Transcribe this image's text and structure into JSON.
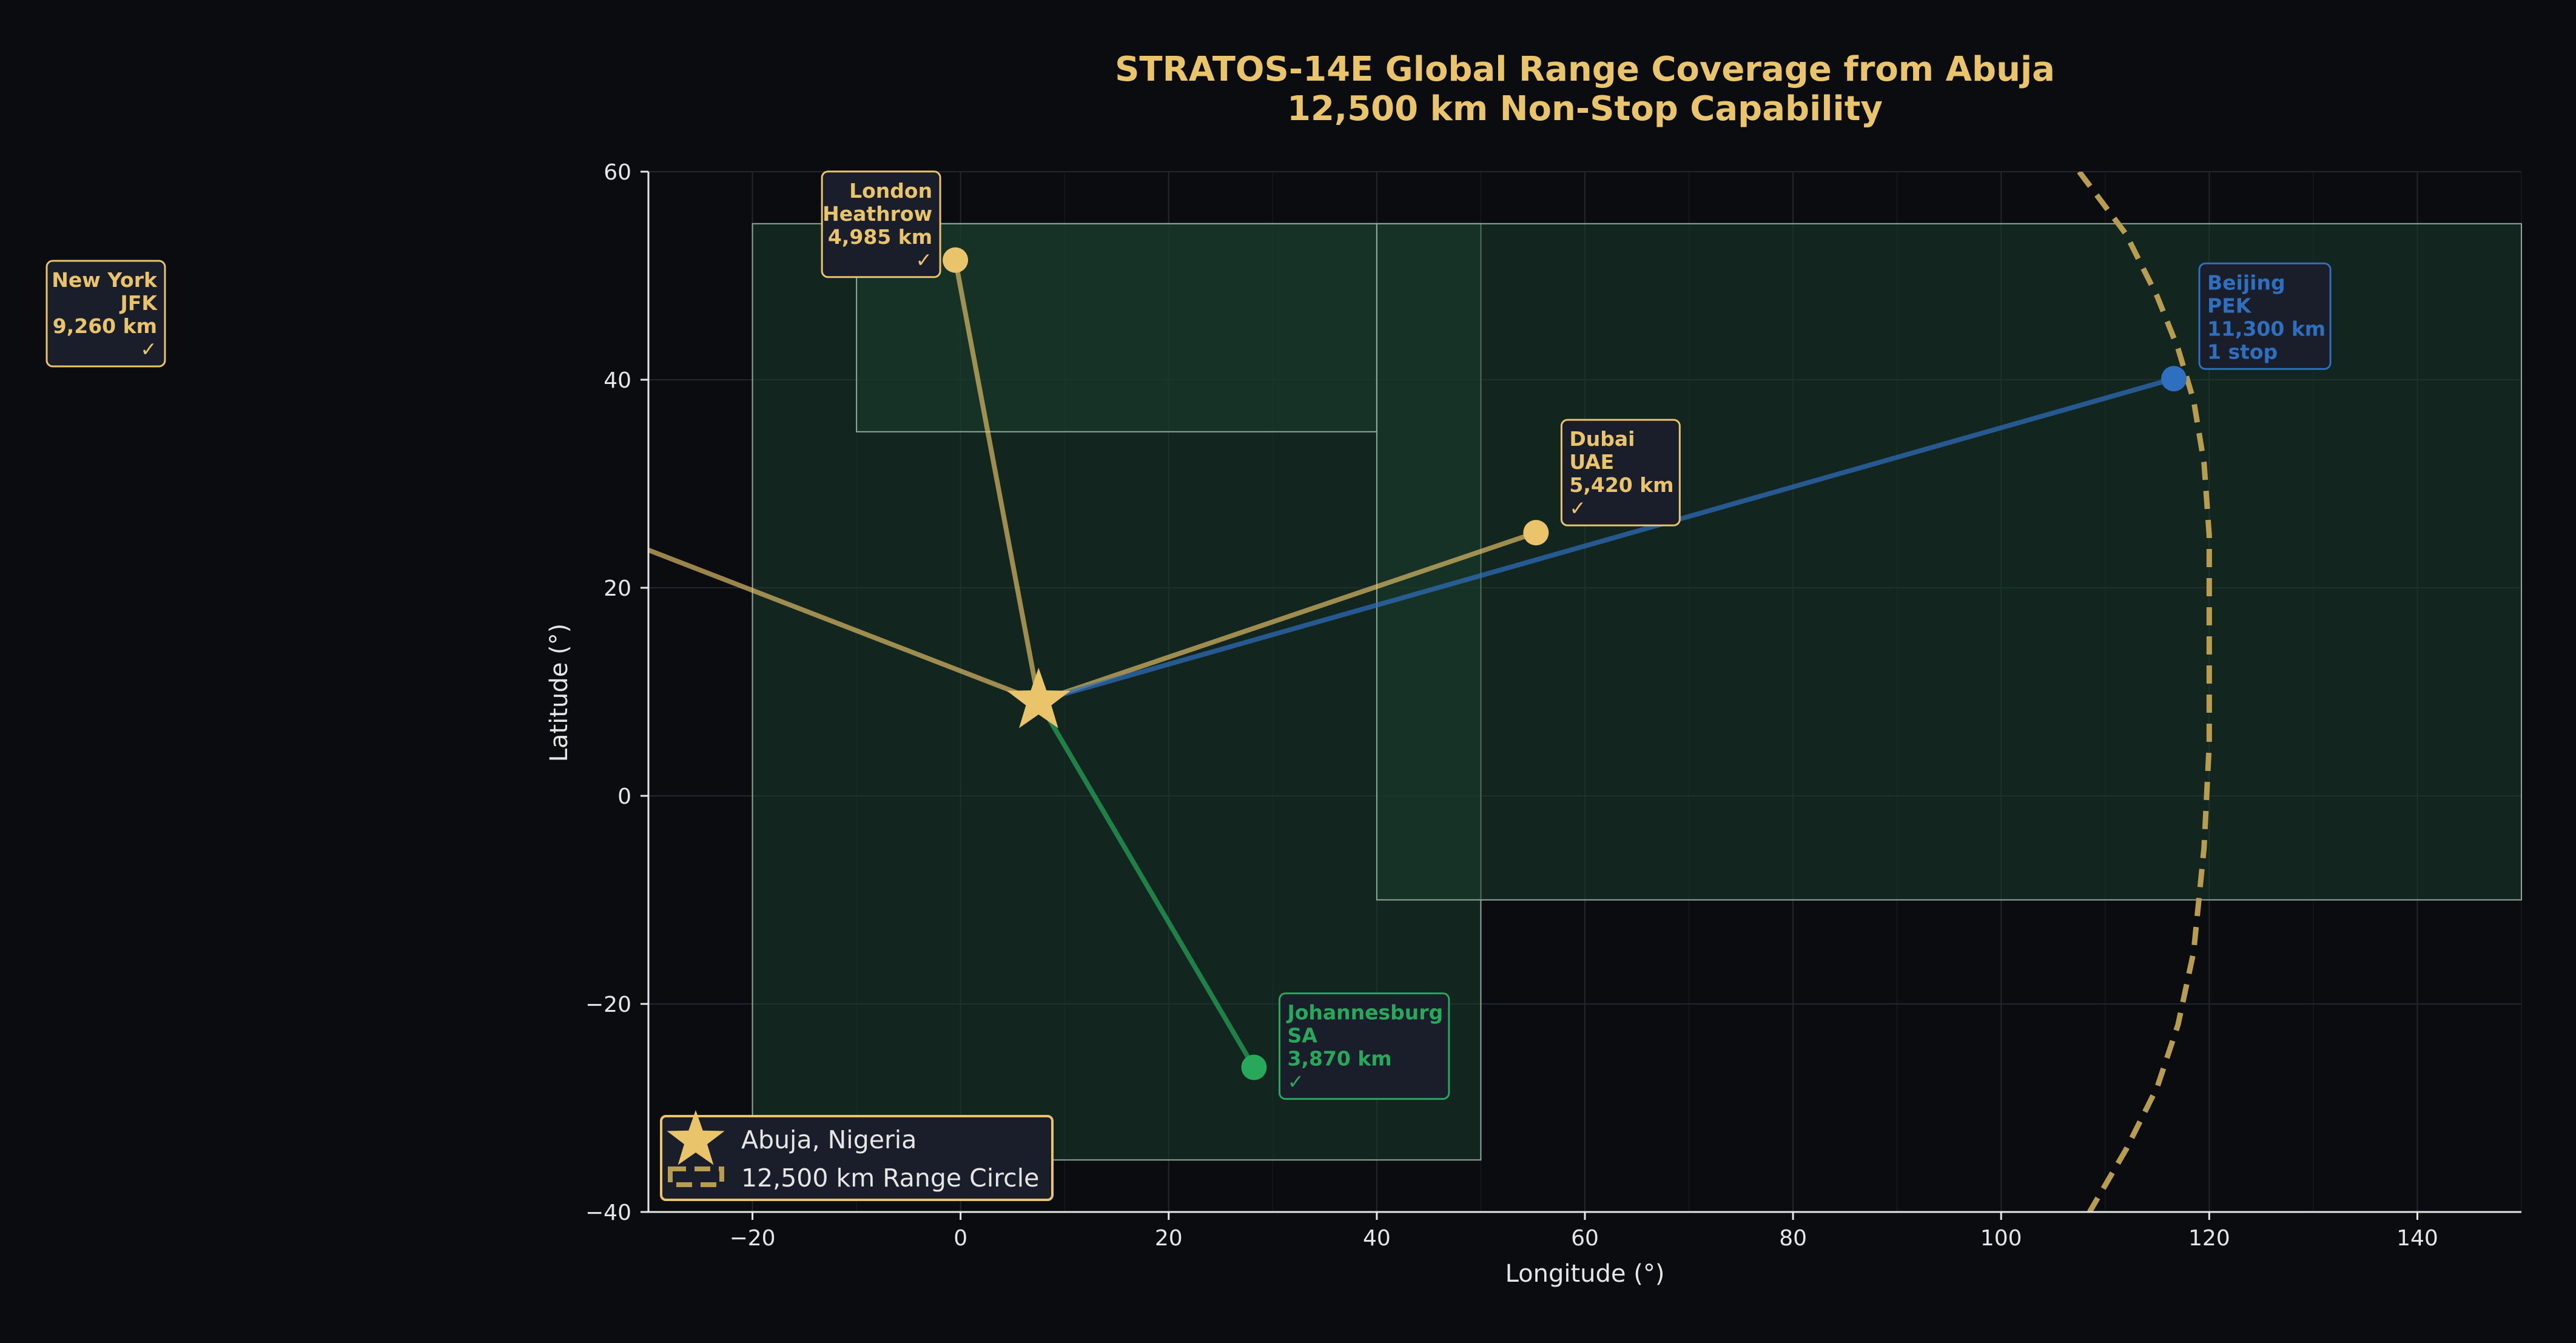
{
  "colors": {
    "background": "#0b0c10",
    "gold": "#e9c46a",
    "blue": "#2f6fbf",
    "green": "#27a85a",
    "region_fill": "#1a3d2c",
    "region_stroke": "#8fa89a",
    "axis": "#e6e6e6",
    "tick_text": "#e6e6e6",
    "grid": "#22262e",
    "box_fill": "#1a1e2a",
    "range_circle": "#b89c50"
  },
  "chart_data": {
    "type": "scatter",
    "title_lines": [
      "STRATOS-14E Global Range Coverage from Abuja",
      "12,500 km Non-Stop Capability"
    ],
    "xlabel": "Longitude (°)",
    "ylabel": "Latitude (°)",
    "xlim": [
      -30,
      150
    ],
    "ylim": [
      -40,
      60
    ],
    "xticks": [
      -20,
      0,
      20,
      40,
      60,
      80,
      100,
      120,
      140
    ],
    "yticks": [
      -40,
      -20,
      0,
      20,
      40,
      60
    ],
    "grid": true,
    "origin": {
      "name": "Abuja, Nigeria",
      "lon": 7.5,
      "lat": 9.1,
      "marker": "star-icon"
    },
    "range_circle": {
      "label": "12,500 km Range Circle",
      "points": [
        [
          107.5,
          60
        ],
        [
          112,
          54
        ],
        [
          115,
          48
        ],
        [
          117,
          43
        ],
        [
          118.5,
          38
        ],
        [
          119.5,
          32
        ],
        [
          120,
          25
        ],
        [
          120,
          15
        ],
        [
          120,
          5
        ],
        [
          119.5,
          -5
        ],
        [
          118.5,
          -15
        ],
        [
          117,
          -22
        ],
        [
          115,
          -28
        ],
        [
          112,
          -34
        ],
        [
          108.5,
          -40
        ]
      ]
    },
    "regions": [
      {
        "name": "region-africa",
        "x0": -20,
        "x1": 50,
        "y0": -35,
        "y1": 55
      },
      {
        "name": "region-europe",
        "x0": -10,
        "x1": 40,
        "y0": 35,
        "y1": 55
      },
      {
        "name": "region-asia",
        "x0": 40,
        "x1": 150,
        "y0": -10,
        "y1": 55
      }
    ],
    "destinations": [
      {
        "id": "london",
        "lon": -0.5,
        "lat": 51.5,
        "color": "gold",
        "lines": [
          "London",
          "Heathrow",
          "4,985 km",
          "✓"
        ],
        "align": "right",
        "show_marker": true
      },
      {
        "id": "dubai",
        "lon": 55.3,
        "lat": 25.3,
        "color": "gold",
        "lines": [
          "Dubai",
          "UAE",
          "5,420 km",
          "✓"
        ],
        "align": "left",
        "show_marker": true
      },
      {
        "id": "beijing",
        "lon": 116.6,
        "lat": 40.1,
        "color": "blue",
        "lines": [
          "Beijing",
          "PEK",
          "11,300 km",
          "1 stop"
        ],
        "align": "left",
        "show_marker": true
      },
      {
        "id": "johannesburg",
        "lon": 28.2,
        "lat": -26.1,
        "color": "green",
        "lines": [
          "Johannesburg",
          "SA",
          "3,870 km",
          "✓"
        ],
        "align": "left",
        "show_marker": true
      },
      {
        "id": "newyork",
        "lon": -73.8,
        "lat": 40.6,
        "color": "gold",
        "lines": [
          "New York",
          "JFK",
          "9,260 km",
          "✓"
        ],
        "align": "right",
        "show_marker": false
      }
    ],
    "legend": {
      "position": "lower-left",
      "entries": [
        {
          "label": "Abuja, Nigeria",
          "kind": "star"
        },
        {
          "label": "12,500 km Range Circle",
          "kind": "dashed"
        }
      ]
    }
  }
}
